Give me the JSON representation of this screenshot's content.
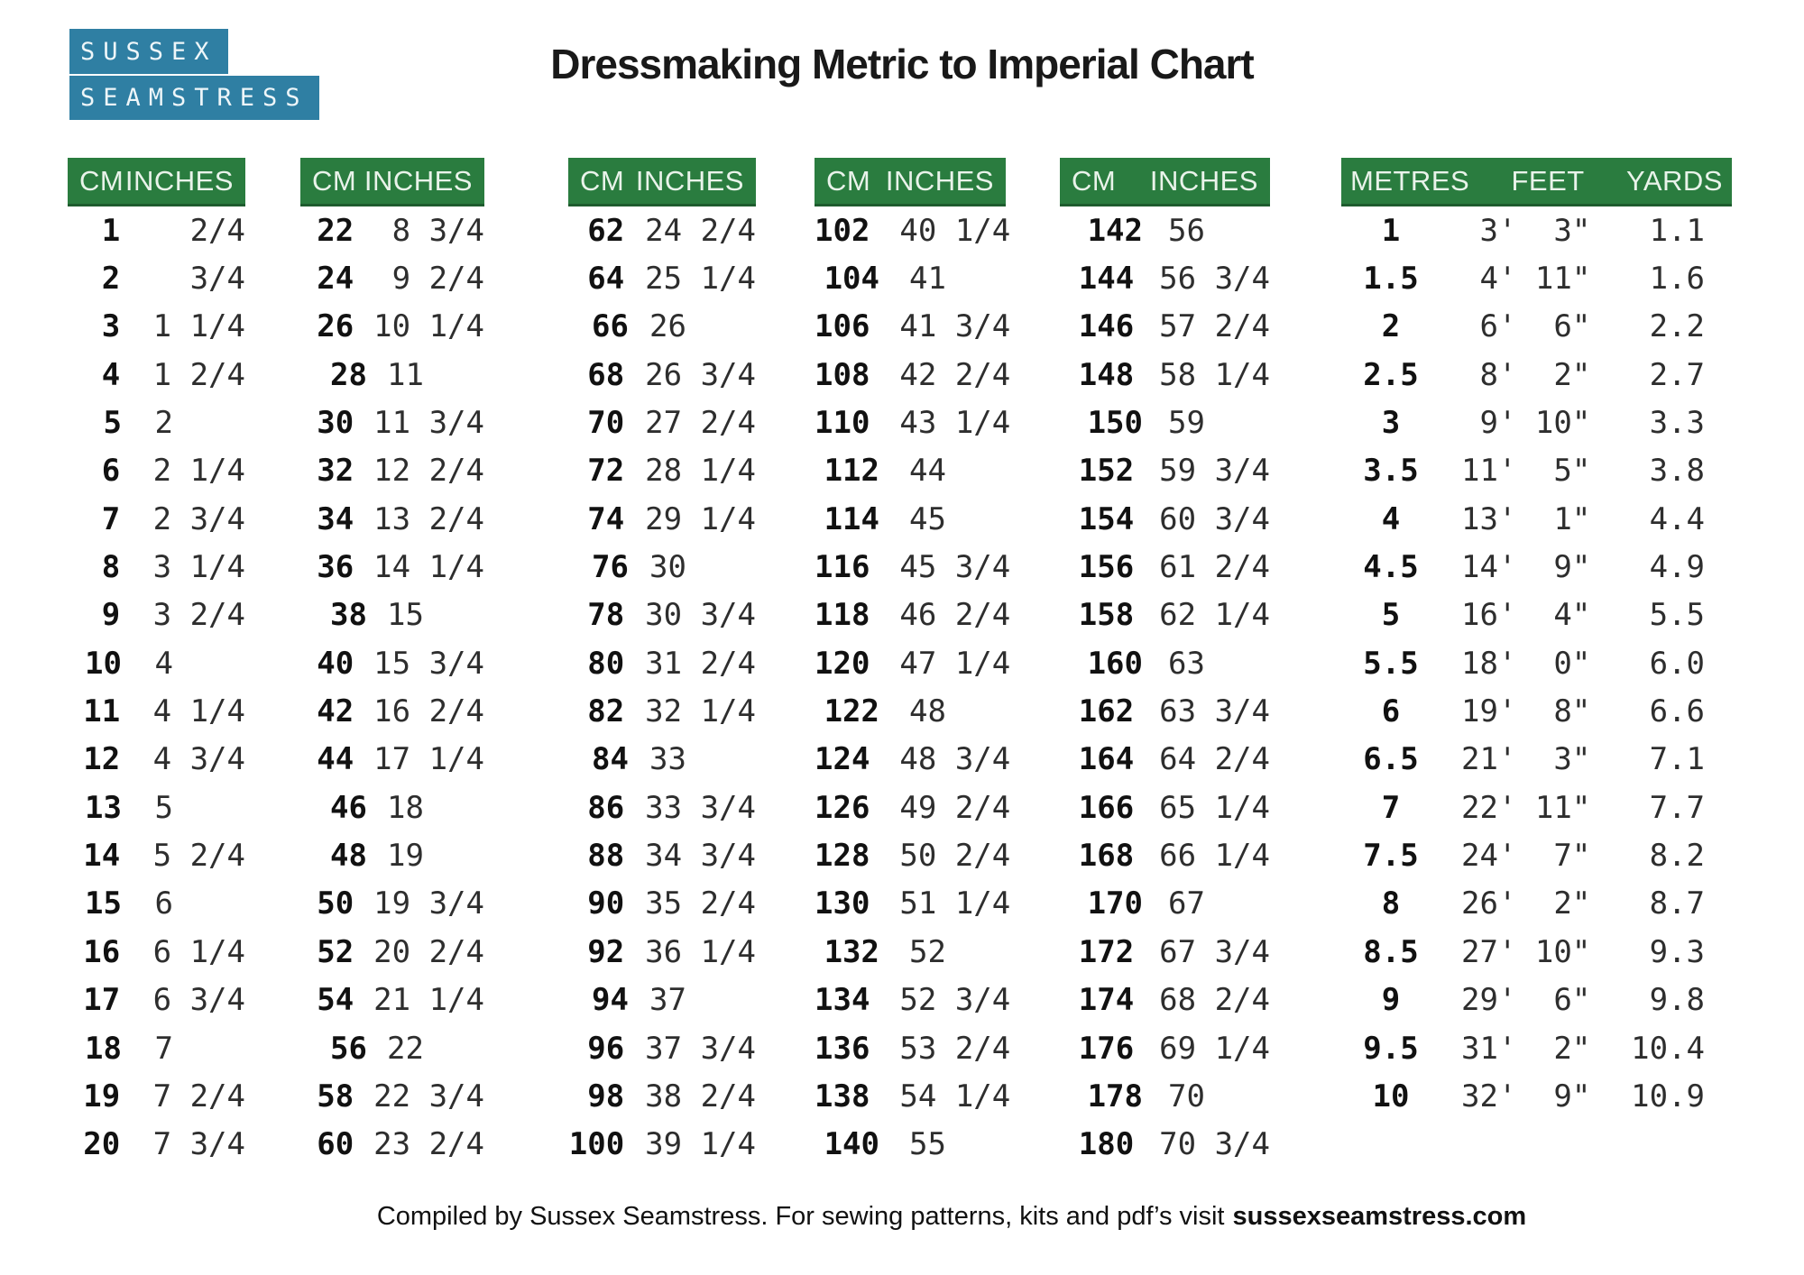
{
  "title": "Dressmaking Metric to Imperial Chart",
  "logo": {
    "line1": "SUSSEX",
    "line2": "SEAMSTRESS"
  },
  "colors": {
    "header_green": "#2a7c3f",
    "logo_blue": "#2f7fa3",
    "page_bg": "#ffffff"
  },
  "cm_tables": [
    {
      "headers": [
        "CM",
        "INCHES"
      ],
      "rows": [
        [
          "1",
          "   2/4"
        ],
        [
          "2",
          "   3/4"
        ],
        [
          "3",
          " 1 1/4"
        ],
        [
          "4",
          " 1 2/4"
        ],
        [
          "5",
          " 2"
        ],
        [
          "6",
          " 2 1/4"
        ],
        [
          "7",
          " 2 3/4"
        ],
        [
          "8",
          " 3 1/4"
        ],
        [
          "9",
          " 3 2/4"
        ],
        [
          "10",
          " 4"
        ],
        [
          "11",
          " 4 1/4"
        ],
        [
          "12",
          " 4 3/4"
        ],
        [
          "13",
          " 5"
        ],
        [
          "14",
          " 5 2/4"
        ],
        [
          "15",
          " 6"
        ],
        [
          "16",
          " 6 1/4"
        ],
        [
          "17",
          " 6 3/4"
        ],
        [
          "18",
          " 7"
        ],
        [
          "19",
          " 7 2/4"
        ],
        [
          "20",
          " 7 3/4"
        ]
      ]
    },
    {
      "headers": [
        "CM",
        "INCHES"
      ],
      "rows": [
        [
          "22",
          " 8 3/4"
        ],
        [
          "24",
          " 9 2/4"
        ],
        [
          "26",
          "10 1/4"
        ],
        [
          "28",
          "11"
        ],
        [
          "30",
          "11 3/4"
        ],
        [
          "32",
          "12 2/4"
        ],
        [
          "34",
          "13 2/4"
        ],
        [
          "36",
          "14 1/4"
        ],
        [
          "38",
          "15"
        ],
        [
          "40",
          "15 3/4"
        ],
        [
          "42",
          "16 2/4"
        ],
        [
          "44",
          "17 1/4"
        ],
        [
          "46",
          "18"
        ],
        [
          "48",
          "19"
        ],
        [
          "50",
          "19 3/4"
        ],
        [
          "52",
          "20 2/4"
        ],
        [
          "54",
          "21 1/4"
        ],
        [
          "56",
          "22"
        ],
        [
          "58",
          "22 3/4"
        ],
        [
          "60",
          "23 2/4"
        ]
      ]
    },
    {
      "headers": [
        "CM",
        "INCHES"
      ],
      "rows": [
        [
          "62",
          "24 2/4"
        ],
        [
          "64",
          "25 1/4"
        ],
        [
          "66",
          "26"
        ],
        [
          "68",
          "26 3/4"
        ],
        [
          "70",
          "27 2/4"
        ],
        [
          "72",
          "28 1/4"
        ],
        [
          "74",
          "29 1/4"
        ],
        [
          "76",
          "30"
        ],
        [
          "78",
          "30 3/4"
        ],
        [
          "80",
          "31 2/4"
        ],
        [
          "82",
          "32 1/4"
        ],
        [
          "84",
          "33"
        ],
        [
          "86",
          "33 3/4"
        ],
        [
          "88",
          "34 3/4"
        ],
        [
          "90",
          "35 2/4"
        ],
        [
          "92",
          "36 1/4"
        ],
        [
          "94",
          "37"
        ],
        [
          "96",
          "37 3/4"
        ],
        [
          "98",
          "38 2/4"
        ],
        [
          "100",
          "39 1/4"
        ]
      ]
    },
    {
      "headers": [
        "CM",
        "INCHES"
      ],
      "rows": [
        [
          "102",
          "40 1/4"
        ],
        [
          "104",
          "41"
        ],
        [
          "106",
          "41 3/4"
        ],
        [
          "108",
          "42 2/4"
        ],
        [
          "110",
          "43 1/4"
        ],
        [
          "112",
          "44"
        ],
        [
          "114",
          "45"
        ],
        [
          "116",
          "45 3/4"
        ],
        [
          "118",
          "46 2/4"
        ],
        [
          "120",
          "47 1/4"
        ],
        [
          "122",
          "48"
        ],
        [
          "124",
          "48 3/4"
        ],
        [
          "126",
          "49 2/4"
        ],
        [
          "128",
          "50 2/4"
        ],
        [
          "130",
          "51 1/4"
        ],
        [
          "132",
          "52"
        ],
        [
          "134",
          "52 3/4"
        ],
        [
          "136",
          "53 2/4"
        ],
        [
          "138",
          "54 1/4"
        ],
        [
          "140",
          "55"
        ]
      ]
    },
    {
      "headers": [
        "CM",
        "INCHES"
      ],
      "rows": [
        [
          "142",
          "56"
        ],
        [
          "144",
          "56 3/4"
        ],
        [
          "146",
          "57 2/4"
        ],
        [
          "148",
          "58 1/4"
        ],
        [
          "150",
          "59"
        ],
        [
          "152",
          "59 3/4"
        ],
        [
          "154",
          "60 3/4"
        ],
        [
          "156",
          "61 2/4"
        ],
        [
          "158",
          "62 1/4"
        ],
        [
          "160",
          "63"
        ],
        [
          "162",
          "63 3/4"
        ],
        [
          "164",
          "64 2/4"
        ],
        [
          "166",
          "65 1/4"
        ],
        [
          "168",
          "66 1/4"
        ],
        [
          "170",
          "67"
        ],
        [
          "172",
          "67 3/4"
        ],
        [
          "174",
          "68 2/4"
        ],
        [
          "176",
          "69 1/4"
        ],
        [
          "178",
          "70"
        ],
        [
          "180",
          "70 3/4"
        ]
      ]
    }
  ],
  "metres_table": {
    "headers": [
      "METRES",
      "FEET",
      "YARDS"
    ],
    "rows": [
      [
        "1",
        " 3'  3\"",
        " 1.1"
      ],
      [
        "1.5",
        " 4' 11\"",
        " 1.6"
      ],
      [
        "2",
        " 6'  6\"",
        " 2.2"
      ],
      [
        "2.5",
        " 8'  2\"",
        " 2.7"
      ],
      [
        "3",
        " 9' 10\"",
        " 3.3"
      ],
      [
        "3.5",
        "11'  5\"",
        " 3.8"
      ],
      [
        "4",
        "13'  1\"",
        " 4.4"
      ],
      [
        "4.5",
        "14'  9\"",
        " 4.9"
      ],
      [
        "5",
        "16'  4\"",
        " 5.5"
      ],
      [
        "5.5",
        "18'  0\"",
        " 6.0"
      ],
      [
        "6",
        "19'  8\"",
        " 6.6"
      ],
      [
        "6.5",
        "21'  3\"",
        " 7.1"
      ],
      [
        "7",
        "22' 11\"",
        " 7.7"
      ],
      [
        "7.5",
        "24'  7\"",
        " 8.2"
      ],
      [
        "8",
        "26'  2\"",
        " 8.7"
      ],
      [
        "8.5",
        "27' 10\"",
        " 9.3"
      ],
      [
        "9",
        "29'  6\"",
        " 9.8"
      ],
      [
        "9.5",
        "31'  2\"",
        "10.4"
      ],
      [
        "10",
        "32'  9\"",
        "10.9"
      ]
    ]
  },
  "footer": {
    "text": "Compiled by Sussex Seamstress.  For sewing patterns, kits and pdf’s visit",
    "site": "sussexseamstress.com"
  }
}
